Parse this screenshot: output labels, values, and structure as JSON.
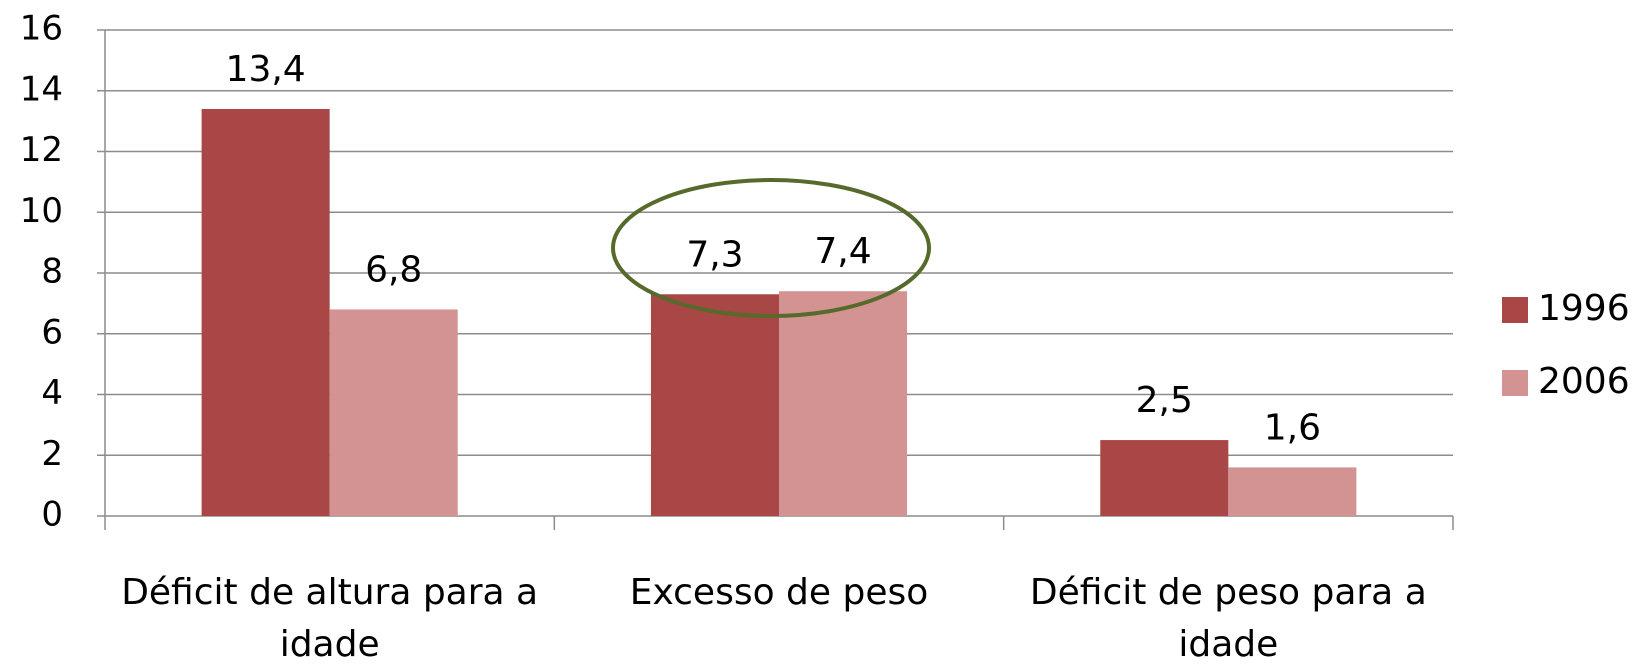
{
  "chart_data": {
    "type": "bar",
    "categories": [
      "Déficit de altura para a idade",
      "Excesso de peso",
      "Déficit de peso para a idade"
    ],
    "series": [
      {
        "name": "1996",
        "color": "#a94646",
        "values": [
          13.4,
          7.3,
          2.5
        ],
        "value_labels": [
          "13,4",
          "7,3",
          "2,5"
        ]
      },
      {
        "name": "2006",
        "color": "#d39392",
        "values": [
          6.8,
          7.4,
          1.6
        ],
        "value_labels": [
          "6,8",
          "7,4",
          "1,6"
        ]
      }
    ],
    "ylim": [
      0,
      16
    ],
    "yticks": [
      0,
      2,
      4,
      6,
      8,
      10,
      12,
      14,
      16
    ],
    "grid": true,
    "legend": "right"
  }
}
